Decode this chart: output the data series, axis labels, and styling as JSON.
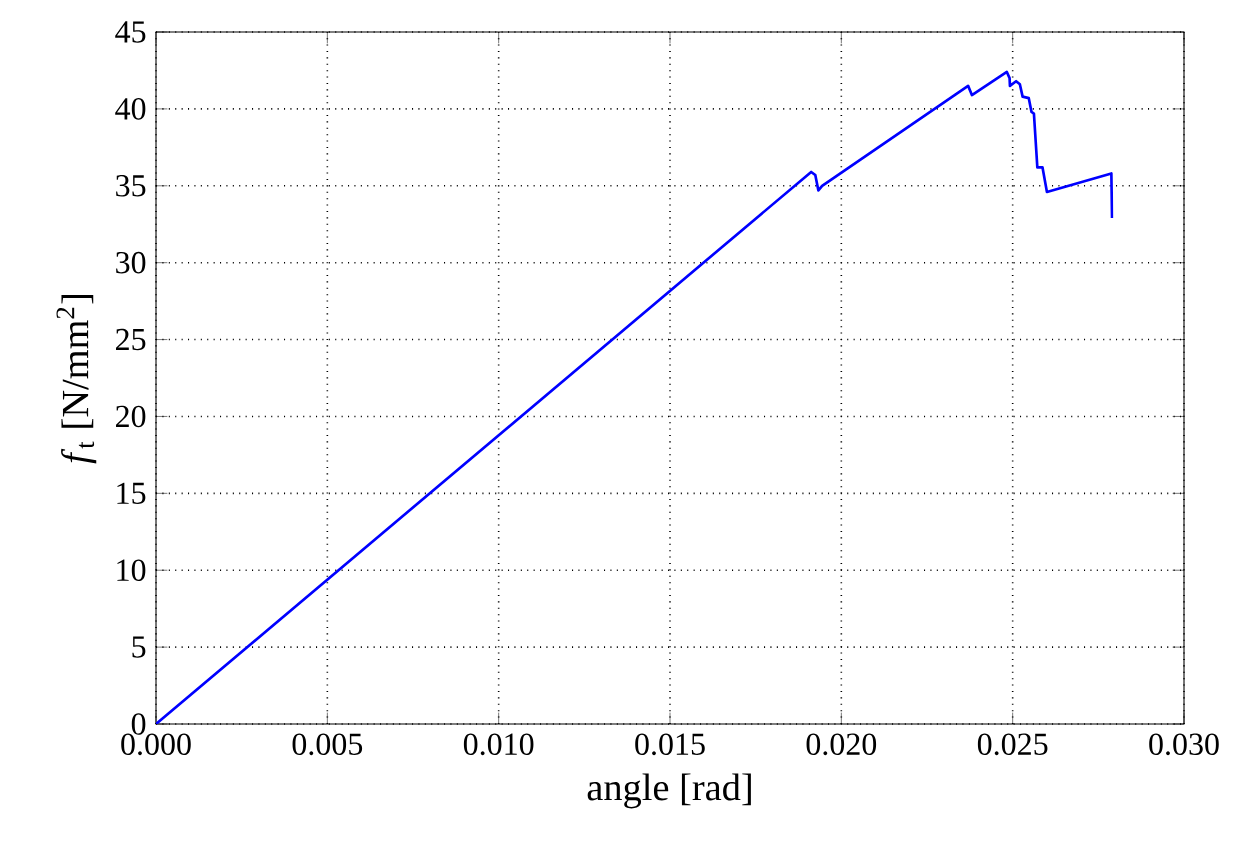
{
  "chart_data": {
    "type": "line",
    "xlabel": "angle [rad]",
    "ylabel": "*f*$_{t}$ [N/mm$^{2}$]",
    "x": [
      0,
      0.01912,
      0.01924,
      0.01933,
      0.01944,
      0.0237,
      0.02381,
      0.02483,
      0.02491,
      0.02492,
      0.0251,
      0.02521,
      0.02529,
      0.02547,
      0.02555,
      0.02562,
      0.02572,
      0.02587,
      0.026,
      0.02788,
      0.0279
    ],
    "series": [
      {
        "color": "#0000ff",
        "values": [
          0,
          35.9,
          35.7,
          34.7,
          35.0,
          41.5,
          40.9,
          42.4,
          42.0,
          41.5,
          41.8,
          41.6,
          40.8,
          40.7,
          39.8,
          39.7,
          36.2,
          36.2,
          34.6,
          35.8,
          32.9
        ]
      }
    ],
    "xlim": [
      0,
      0.03
    ],
    "ylim": [
      0,
      45
    ],
    "xticks": [
      {
        "value": 0,
        "label": "0.000"
      },
      {
        "value": 0.005,
        "label": "0.005"
      },
      {
        "value": 0.01,
        "label": "0.010"
      },
      {
        "value": 0.015,
        "label": "0.015"
      },
      {
        "value": 0.02,
        "label": "0.020"
      },
      {
        "value": 0.025,
        "label": "0.025"
      },
      {
        "value": 0.03,
        "label": "0.030"
      }
    ],
    "yticks": [
      0,
      5,
      10,
      15,
      20,
      25,
      30,
      35,
      40,
      45
    ],
    "grid": true,
    "line_style": "solid",
    "marker": "none"
  }
}
